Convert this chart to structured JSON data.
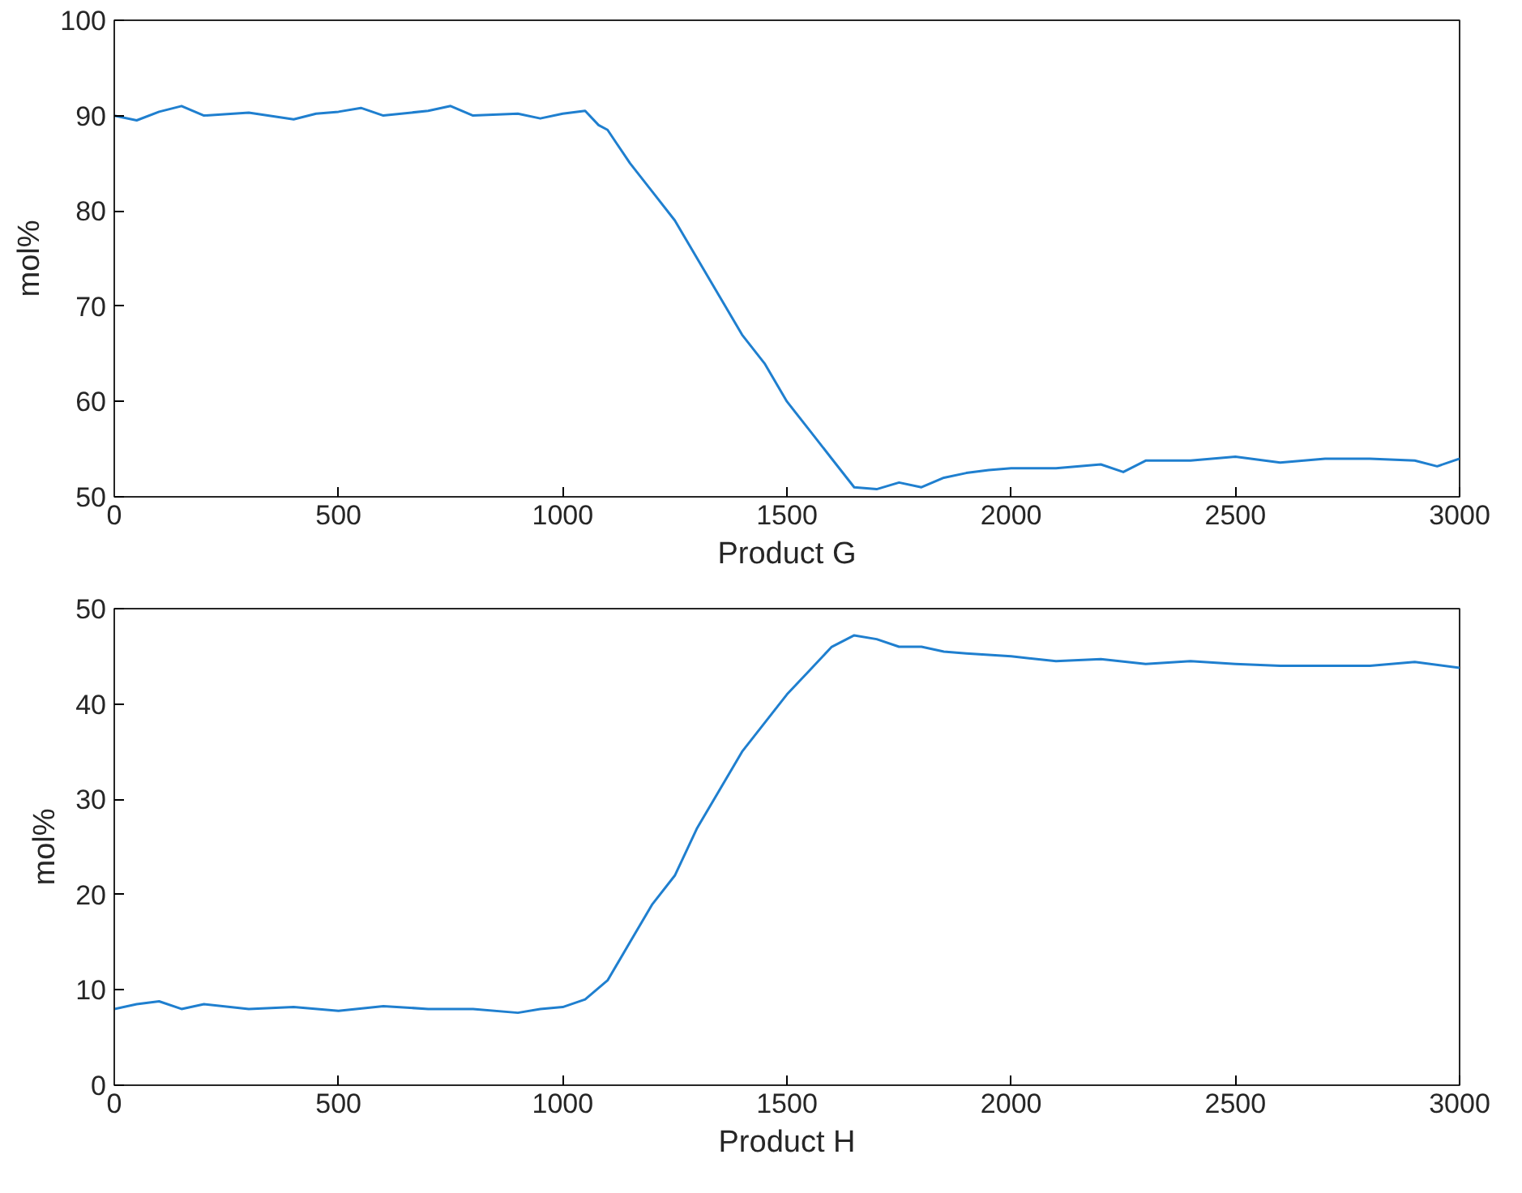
{
  "chart_data": [
    {
      "type": "line",
      "xlabel": "Product G",
      "ylabel": "mol%",
      "xlim": [
        0,
        3000
      ],
      "ylim": [
        50,
        100
      ],
      "xticks": [
        0,
        500,
        1000,
        1500,
        2000,
        2500,
        3000
      ],
      "yticks": [
        50,
        60,
        70,
        80,
        90,
        100
      ],
      "grid": false,
      "series": [
        {
          "color": "#1f7fcf",
          "x": [
            0,
            50,
            100,
            150,
            200,
            300,
            400,
            450,
            500,
            550,
            600,
            700,
            750,
            800,
            900,
            950,
            1000,
            1050,
            1080,
            1100,
            1150,
            1200,
            1250,
            1300,
            1350,
            1400,
            1450,
            1500,
            1550,
            1600,
            1650,
            1700,
            1750,
            1800,
            1850,
            1900,
            1950,
            2000,
            2100,
            2200,
            2250,
            2300,
            2400,
            2500,
            2600,
            2700,
            2800,
            2900,
            2950,
            3000
          ],
          "values": [
            90,
            89.5,
            90.4,
            91,
            90,
            90.3,
            89.6,
            90.2,
            90.4,
            90.8,
            90,
            90.5,
            91,
            90,
            90.2,
            89.7,
            90.2,
            90.5,
            89,
            88.5,
            85,
            82,
            79,
            75,
            71,
            67,
            64,
            60,
            57,
            54,
            51,
            50.8,
            51.5,
            51,
            52,
            52.5,
            52.8,
            53,
            53,
            53.4,
            52.6,
            53.8,
            53.8,
            54.2,
            53.6,
            54,
            54,
            53.8,
            53.2,
            54
          ]
        }
      ]
    },
    {
      "type": "line",
      "xlabel": "Product H",
      "ylabel": "mol%",
      "xlim": [
        0,
        3000
      ],
      "ylim": [
        0,
        50
      ],
      "xticks": [
        0,
        500,
        1000,
        1500,
        2000,
        2500,
        3000
      ],
      "yticks": [
        0,
        10,
        20,
        30,
        40,
        50
      ],
      "grid": false,
      "series": [
        {
          "color": "#1f7fcf",
          "x": [
            0,
            50,
            100,
            150,
            200,
            300,
            400,
            500,
            600,
            700,
            800,
            900,
            950,
            1000,
            1050,
            1100,
            1150,
            1200,
            1250,
            1300,
            1350,
            1400,
            1450,
            1500,
            1550,
            1600,
            1650,
            1700,
            1750,
            1800,
            1850,
            1900,
            2000,
            2100,
            2200,
            2300,
            2400,
            2500,
            2600,
            2700,
            2800,
            2900,
            3000
          ],
          "values": [
            8,
            8.5,
            8.8,
            8,
            8.5,
            8,
            8.2,
            7.8,
            8.3,
            8,
            8,
            7.6,
            8,
            8.2,
            9,
            11,
            15,
            19,
            22,
            27,
            31,
            35,
            38,
            41,
            43.5,
            46,
            47.2,
            46.8,
            46,
            46,
            45.5,
            45.3,
            45,
            44.5,
            44.7,
            44.2,
            44.5,
            44.2,
            44,
            44,
            44,
            44.4,
            43.8
          ]
        }
      ]
    }
  ]
}
